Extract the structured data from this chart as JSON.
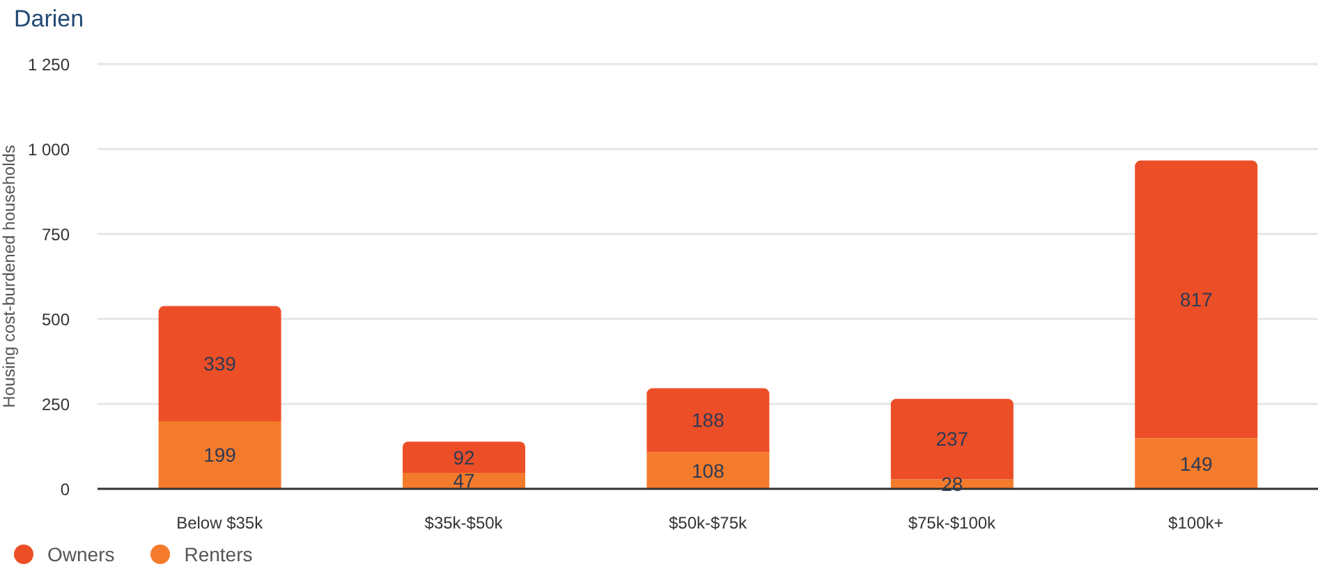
{
  "chart_data": {
    "type": "bar",
    "title": "Darien",
    "ylabel": "Housing cost-burdened households",
    "categories": [
      "Below $35k",
      "$35k-$50k",
      "$50k-$75k",
      "$75k-$100k",
      "$100k+"
    ],
    "series": [
      {
        "name": "Renters",
        "color": "#f47b2b",
        "values": [
          199,
          47,
          108,
          28,
          149
        ]
      },
      {
        "name": "Owners",
        "color": "#ec4f27",
        "values": [
          339,
          92,
          188,
          237,
          817
        ]
      }
    ],
    "stacked": true,
    "data_labels": true,
    "ylim": [
      0,
      1250
    ],
    "yticks": [
      0,
      250,
      500,
      750,
      {
        "value": 1000,
        "label": "1 000"
      },
      {
        "value": 1250,
        "label": "1 250"
      }
    ],
    "grid": "y",
    "legend": "bottom left"
  }
}
